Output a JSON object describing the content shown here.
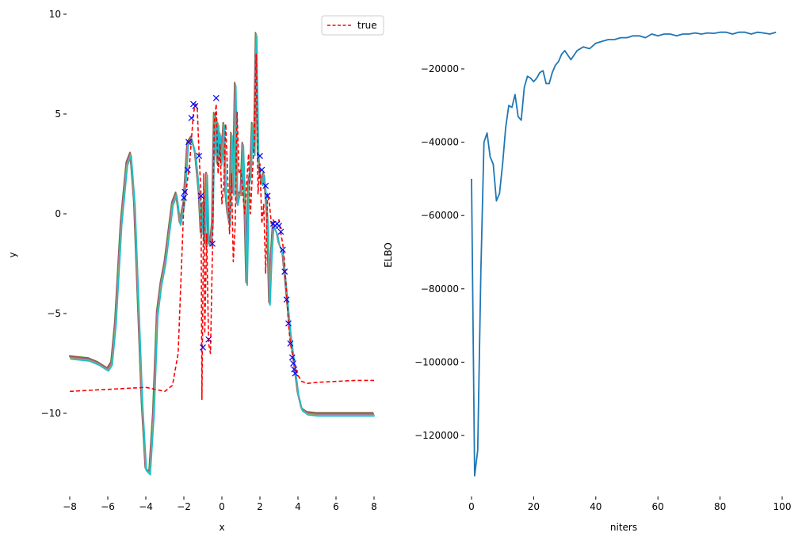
{
  "chart_data": [
    {
      "type": "line",
      "title": "",
      "xlabel": "x",
      "ylabel": "y",
      "xlim": [
        -8.4,
        8.4
      ],
      "ylim": [
        -13.5,
        10
      ],
      "xticks": [
        -8,
        -6,
        -4,
        -2,
        0,
        2,
        4,
        6,
        8
      ],
      "xtick_labels": [
        "−8",
        "−6",
        "−4",
        "−2",
        "0",
        "2",
        "4",
        "6",
        "8"
      ],
      "yticks": [
        10,
        5,
        0,
        -5,
        -10
      ],
      "ytick_labels": [
        "10",
        "5",
        "0",
        "−5",
        "−10"
      ],
      "legend": {
        "position": "top-right",
        "entries": [
          {
            "label": "true",
            "color": "#ff0000",
            "style": "dashed"
          }
        ]
      },
      "series": [
        {
          "name": "true",
          "style": "dashed",
          "color": "#ff0000",
          "x": [
            -8,
            -7,
            -6,
            -5,
            -4,
            -3,
            -2.6,
            -2.3,
            -2.1,
            -2.0,
            -1.9,
            -1.7,
            -1.5,
            -1.4,
            -1.3,
            -1.2,
            -1.1,
            -1.05,
            -1.0,
            -0.95,
            -0.9,
            -0.8,
            -0.7,
            -0.6,
            -0.5,
            -0.4,
            -0.3,
            -0.2,
            -0.1,
            0.0,
            0.1,
            0.2,
            0.3,
            0.4,
            0.5,
            0.6,
            0.7,
            0.8,
            0.9,
            1.0,
            1.1,
            1.2,
            1.3,
            1.4,
            1.5,
            1.6,
            1.7,
            1.8,
            1.9,
            2.0,
            2.1,
            2.2,
            2.3,
            2.4,
            2.5,
            2.6,
            2.7,
            2.8,
            2.9,
            3.0,
            3.1,
            3.2,
            3.3,
            3.4,
            3.5,
            3.6,
            3.7,
            3.8,
            3.9,
            4.0,
            4.2,
            4.5,
            5,
            6,
            7,
            8
          ],
          "y": [
            -8.9,
            -8.85,
            -8.8,
            -8.75,
            -8.7,
            -8.9,
            -8.6,
            -7.0,
            -2.0,
            0.5,
            1.0,
            2.5,
            5.0,
            5.5,
            5.4,
            3.0,
            1.0,
            -9.3,
            -4.0,
            2.0,
            -6.0,
            -1.0,
            -6.5,
            -7.0,
            -2.0,
            4.5,
            5.5,
            2.0,
            3.5,
            0.5,
            1.5,
            4.5,
            2.0,
            -1.0,
            2.0,
            -2.4,
            -0.5,
            5.1,
            2.0,
            2.2,
            1.0,
            0.0,
            1.5,
            3.0,
            0.0,
            2.0,
            3.5,
            8.0,
            1.0,
            2.5,
            -0.5,
            0.5,
            -3.0,
            1.0,
            0.5,
            -0.5,
            -0.3,
            -0.6,
            -0.5,
            -0.3,
            -1.0,
            -1.5,
            -2.5,
            -4.0,
            -5.5,
            -6.5,
            -7.0,
            -7.5,
            -7.8,
            -8.1,
            -8.4,
            -8.5,
            -8.45,
            -8.4,
            -8.35,
            -8.35
          ]
        }
      ],
      "predictions": {
        "colors": [
          "#2ca02c",
          "#d62728",
          "#9467bd",
          "#8c564b",
          "#e377c2",
          "#7f7f7f",
          "#bcbd22",
          "#17becf"
        ],
        "x": [
          -8,
          -7,
          -6.5,
          -6.0,
          -5.8,
          -5.6,
          -5.3,
          -5.0,
          -4.8,
          -4.6,
          -4.4,
          -4.2,
          -4.0,
          -3.8,
          -3.6,
          -3.4,
          -3.2,
          -3.0,
          -2.8,
          -2.6,
          -2.4,
          -2.2,
          -2.0,
          -1.8,
          -1.6,
          -1.4,
          -1.2,
          -1.1,
          -1.0,
          -0.9,
          -0.8,
          -0.7,
          -0.6,
          -0.5,
          -0.45,
          -0.4,
          -0.35,
          -0.3,
          -0.25,
          -0.2,
          -0.15,
          -0.1,
          -0.05,
          0.0,
          0.1,
          0.2,
          0.3,
          0.4,
          0.5,
          0.6,
          0.7,
          0.8,
          0.9,
          1.0,
          1.1,
          1.2,
          1.3,
          1.4,
          1.5,
          1.6,
          1.7,
          1.8,
          1.9,
          2.0,
          2.1,
          2.2,
          2.3,
          2.4,
          2.5,
          2.6,
          2.7,
          2.8,
          2.9,
          3.0,
          3.2,
          3.4,
          3.6,
          3.8,
          4.0,
          4.2,
          4.5,
          5.0,
          6.0,
          7.0,
          8.0
        ],
        "y": [
          -7.2,
          -7.3,
          -7.5,
          -7.8,
          -7.5,
          -5.5,
          -0.5,
          2.5,
          3.0,
          0.5,
          -4.5,
          -9.5,
          -12.8,
          -13.0,
          -10.0,
          -5.0,
          -3.5,
          -2.5,
          -1.0,
          0.5,
          1.0,
          -0.5,
          0.5,
          3.5,
          3.8,
          3.0,
          1.0,
          -1.0,
          0.5,
          -1.5,
          2.0,
          -1.5,
          -1.5,
          -0.5,
          2.5,
          5.0,
          3.0,
          4.8,
          2.5,
          4.5,
          3.0,
          4.0,
          2.5,
          3.0,
          4.5,
          1.0,
          0.0,
          -0.5,
          4.0,
          1.0,
          6.5,
          0.5,
          1.0,
          1.0,
          3.5,
          0.5,
          -3.5,
          1.5,
          2.0,
          4.5,
          3.0,
          9.0,
          3.0,
          2.0,
          1.5,
          2.0,
          1.0,
          -0.5,
          -4.5,
          -2.0,
          -0.5,
          -0.8,
          -1.0,
          -1.5,
          -2.0,
          -4.0,
          -6.0,
          -7.5,
          -9.0,
          -9.8,
          -10.0,
          -10.05,
          -10.05,
          -10.05,
          -10.05
        ]
      },
      "observations": {
        "marker": "x",
        "color": "#0000ff",
        "x": [
          -2.0,
          -1.95,
          -1.8,
          -1.75,
          -1.6,
          -1.5,
          -1.4,
          -1.2,
          -1.1,
          -1.0,
          -0.7,
          -0.5,
          -0.3,
          2.0,
          2.1,
          2.3,
          2.4,
          2.7,
          2.8,
          2.9,
          3.0,
          3.1,
          3.2,
          3.3,
          3.4,
          3.5,
          3.6,
          3.7,
          3.75,
          3.8,
          3.85
        ],
        "y": [
          0.8,
          1.1,
          2.2,
          3.6,
          4.8,
          5.5,
          5.4,
          2.9,
          0.9,
          -6.7,
          -6.3,
          -1.5,
          5.8,
          2.9,
          2.2,
          1.4,
          0.9,
          -0.5,
          -0.6,
          -0.5,
          -0.6,
          -0.9,
          -1.8,
          -2.9,
          -4.3,
          -5.5,
          -6.5,
          -7.2,
          -7.5,
          -7.8,
          -8.0
        ]
      }
    },
    {
      "type": "line",
      "title": "",
      "xlabel": "niters",
      "ylabel": "ELBO",
      "xlim": [
        -5,
        103
      ],
      "ylim": [
        -133000,
        -6000
      ],
      "xticks": [
        0,
        20,
        40,
        60,
        80,
        100
      ],
      "xtick_labels": [
        "0",
        "20",
        "40",
        "60",
        "80",
        "100"
      ],
      "yticks": [
        -20000,
        -40000,
        -60000,
        -80000,
        -100000,
        -120000
      ],
      "ytick_labels": [
        "−20000",
        "−40000",
        "−60000",
        "−80000",
        "−100000",
        "−120000"
      ],
      "series": [
        {
          "color": "#1f77b4",
          "x": [
            0,
            1,
            2,
            3,
            4,
            5,
            6,
            7,
            8,
            9,
            10,
            11,
            12,
            13,
            14,
            15,
            16,
            17,
            18,
            19,
            20,
            21,
            22,
            23,
            24,
            25,
            26,
            27,
            28,
            29,
            30,
            32,
            34,
            36,
            38,
            40,
            42,
            44,
            46,
            48,
            50,
            52,
            54,
            56,
            58,
            60,
            62,
            64,
            66,
            68,
            70,
            72,
            74,
            76,
            78,
            80,
            82,
            84,
            86,
            88,
            90,
            92,
            94,
            96,
            98
          ],
          "y": [
            -50000,
            -131000,
            -124000,
            -75000,
            -40000,
            -37500,
            -44000,
            -46000,
            -56000,
            -54000,
            -46000,
            -36000,
            -30000,
            -30500,
            -27000,
            -33000,
            -34000,
            -25000,
            -22000,
            -22500,
            -23500,
            -22500,
            -21000,
            -20500,
            -24000,
            -24000,
            -21000,
            -19000,
            -18000,
            -16000,
            -15000,
            -17500,
            -15000,
            -14000,
            -14500,
            -13000,
            -12500,
            -12000,
            -12000,
            -11500,
            -11500,
            -11000,
            -11000,
            -11500,
            -10500,
            -11000,
            -10500,
            -10500,
            -11000,
            -10500,
            -10500,
            -10200,
            -10500,
            -10200,
            -10300,
            -10000,
            -10000,
            -10500,
            -10000,
            -10000,
            -10500,
            -10000,
            -10200,
            -10500,
            -10000
          ]
        }
      ]
    }
  ]
}
